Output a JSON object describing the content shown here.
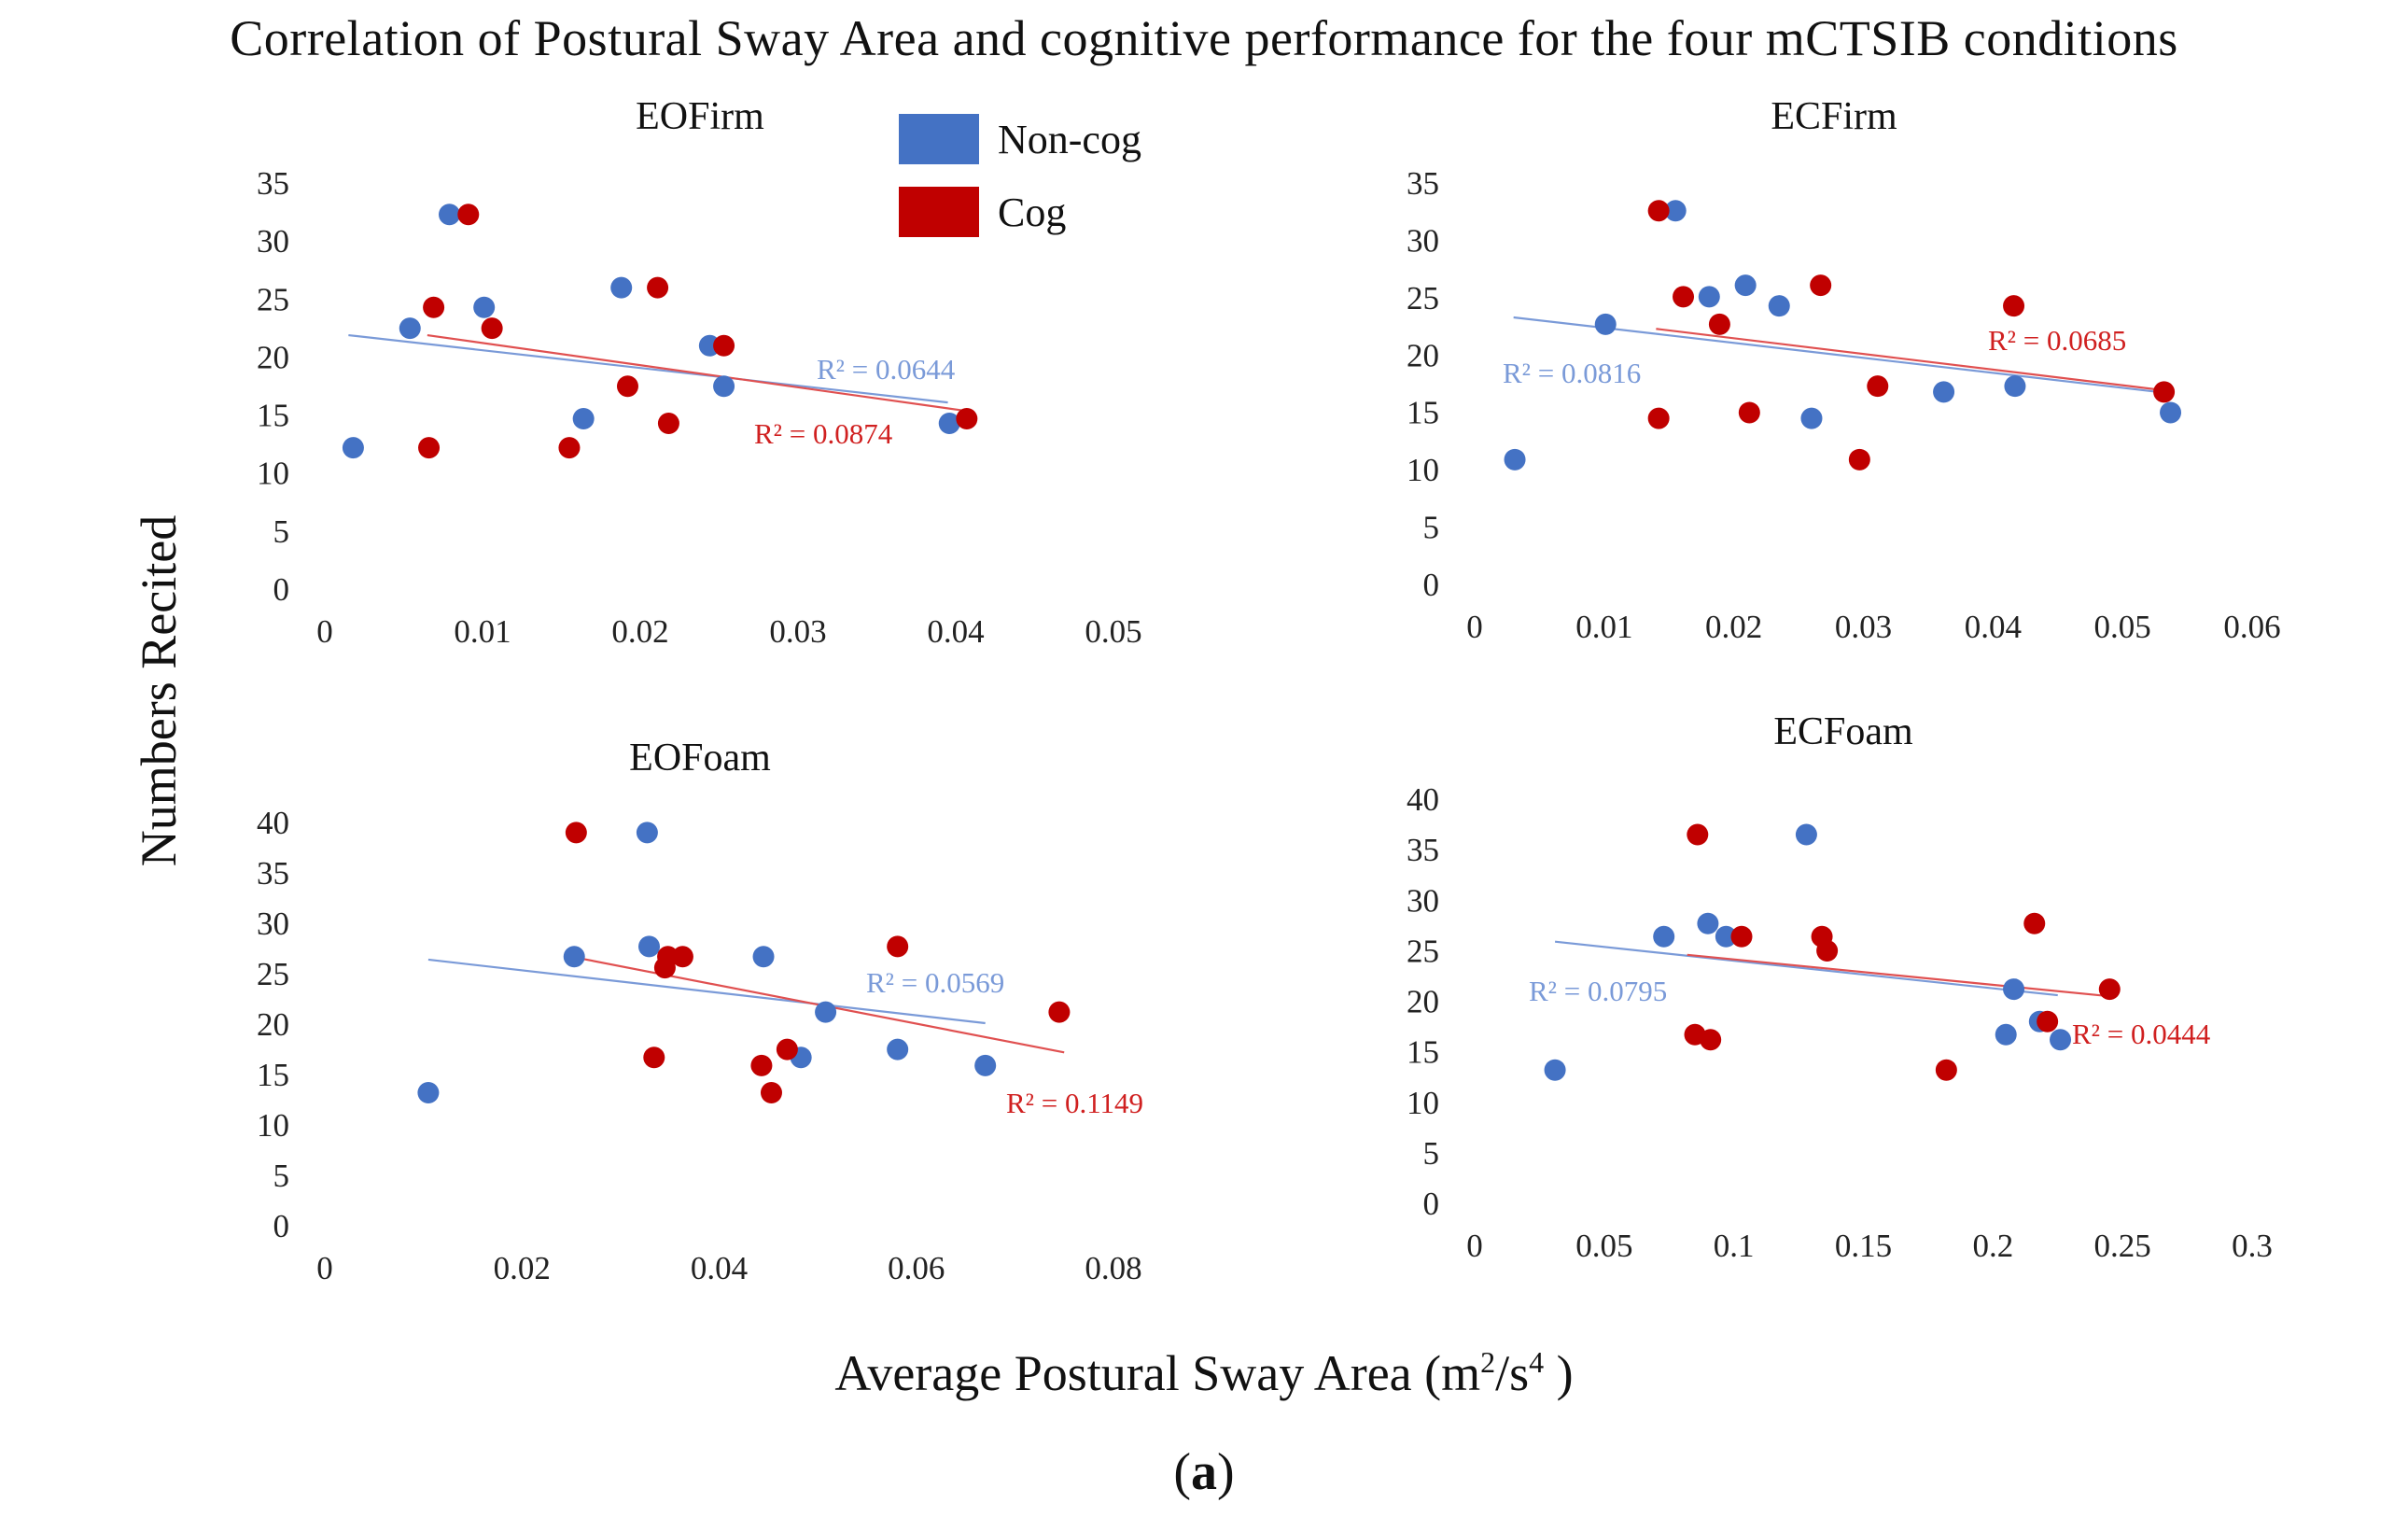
{
  "figure": {
    "title": "Correlation of Postural Sway Area and cognitive performance for the four mCTSIB conditions",
    "ylabel": "Numbers Recited",
    "xlabel_main": "Average Postural Sway Area (m",
    "xlabel_sup1": "2",
    "xlabel_mid": "/s",
    "xlabel_sup2": "4",
    "xlabel_end": " )",
    "sub_label_open": "(",
    "sub_label_bold": "a",
    "sub_label_close": ")"
  },
  "legend": {
    "items": [
      {
        "label": "Non-cog",
        "color": "#4472c4"
      },
      {
        "label": "Cog",
        "color": "#c00000"
      }
    ]
  },
  "colors": {
    "noncog": "#4472c4",
    "cog": "#c00000",
    "noncog_line": "#7a9ad8",
    "cog_line": "#e05050"
  },
  "chart_data": [
    {
      "type": "scatter",
      "title": "EOFirm",
      "xlim": [
        0,
        0.05
      ],
      "ylim": [
        0,
        35
      ],
      "xticks": [
        0,
        0.01,
        0.02,
        0.03,
        0.04,
        0.05
      ],
      "xtick_labels": [
        "0",
        "0.01",
        "0.02",
        "0.03",
        "0.04",
        "0.05"
      ],
      "yticks": [
        0,
        5,
        10,
        15,
        20,
        25,
        30,
        35
      ],
      "series": [
        {
          "name": "Non-cog",
          "r2_label": "R² = 0.0644",
          "trend": [
            [
              0.0015,
              21.8
            ],
            [
              0.0395,
              16.0
            ]
          ],
          "points": [
            [
              0.0018,
              12.1
            ],
            [
              0.0054,
              22.4
            ],
            [
              0.0079,
              32.2
            ],
            [
              0.0101,
              24.2
            ],
            [
              0.0164,
              14.6
            ],
            [
              0.0188,
              25.9
            ],
            [
              0.0244,
              20.9
            ],
            [
              0.0253,
              17.4
            ],
            [
              0.0396,
              14.2
            ]
          ]
        },
        {
          "name": "Cog",
          "r2_label": "R² = 0.0874",
          "trend": [
            [
              0.0065,
              21.8
            ],
            [
              0.0405,
              15.3
            ]
          ],
          "points": [
            [
              0.0066,
              12.1
            ],
            [
              0.0069,
              24.2
            ],
            [
              0.0091,
              32.2
            ],
            [
              0.0106,
              22.4
            ],
            [
              0.0155,
              12.1
            ],
            [
              0.0192,
              17.4
            ],
            [
              0.0211,
              25.9
            ],
            [
              0.0218,
              14.2
            ],
            [
              0.0253,
              20.9
            ],
            [
              0.0407,
              14.6
            ]
          ]
        }
      ]
    },
    {
      "type": "scatter",
      "title": "ECFirm",
      "xlim": [
        0,
        0.06
      ],
      "ylim": [
        0,
        35
      ],
      "xticks": [
        0,
        0.01,
        0.02,
        0.03,
        0.04,
        0.05,
        0.06
      ],
      "xtick_labels": [
        "0",
        "0.01",
        "0.02",
        "0.03",
        "0.04",
        "0.05",
        "0.06"
      ],
      "yticks": [
        0,
        5,
        10,
        15,
        20,
        25,
        30,
        35
      ],
      "series": [
        {
          "name": "Non-cog",
          "r2_label": "R² = 0.0816",
          "trend": [
            [
              0.003,
              23.2
            ],
            [
              0.0535,
              16.6
            ]
          ],
          "points": [
            [
              0.0031,
              10.8
            ],
            [
              0.0101,
              22.6
            ],
            [
              0.0155,
              32.5
            ],
            [
              0.0181,
              25.0
            ],
            [
              0.0209,
              26.0
            ],
            [
              0.0235,
              24.2
            ],
            [
              0.026,
              14.4
            ],
            [
              0.0362,
              16.7
            ],
            [
              0.0417,
              17.2
            ],
            [
              0.0537,
              14.9
            ]
          ]
        },
        {
          "name": "Cog",
          "r2_label": "R² = 0.0685",
          "trend": [
            [
              0.014,
              22.2
            ],
            [
              0.0535,
              16.8
            ]
          ],
          "points": [
            [
              0.0142,
              32.5
            ],
            [
              0.0142,
              14.4
            ],
            [
              0.0161,
              25.0
            ],
            [
              0.0189,
              22.6
            ],
            [
              0.0212,
              14.9
            ],
            [
              0.0267,
              26.0
            ],
            [
              0.0297,
              10.8
            ],
            [
              0.0311,
              17.2
            ],
            [
              0.0416,
              24.2
            ],
            [
              0.0532,
              16.7
            ]
          ]
        }
      ]
    },
    {
      "type": "scatter",
      "title": "EOFoam",
      "xlim": [
        0,
        0.08
      ],
      "ylim": [
        0,
        40
      ],
      "xticks": [
        0,
        0.02,
        0.04,
        0.06,
        0.08
      ],
      "xtick_labels": [
        "0",
        "0.02",
        "0.04",
        "0.06",
        "0.08"
      ],
      "yticks": [
        0,
        5,
        10,
        15,
        20,
        25,
        30,
        35,
        40
      ],
      "series": [
        {
          "name": "Non-cog",
          "r2_label": "R² = 0.0569",
          "trend": [
            [
              0.0105,
              26.3
            ],
            [
              0.067,
              20.0
            ]
          ],
          "points": [
            [
              0.0105,
              13.1
            ],
            [
              0.0253,
              26.6
            ],
            [
              0.0327,
              38.9
            ],
            [
              0.0329,
              27.6
            ],
            [
              0.0445,
              26.6
            ],
            [
              0.0483,
              16.6
            ],
            [
              0.0508,
              21.1
            ],
            [
              0.0581,
              17.4
            ],
            [
              0.067,
              15.8
            ]
          ]
        },
        {
          "name": "Cog",
          "r2_label": "R² = 0.1149",
          "trend": [
            [
              0.0255,
              26.5
            ],
            [
              0.075,
              17.1
            ]
          ],
          "points": [
            [
              0.0255,
              38.9
            ],
            [
              0.0334,
              16.6
            ],
            [
              0.0345,
              25.5
            ],
            [
              0.0348,
              26.6
            ],
            [
              0.0363,
              26.6
            ],
            [
              0.0443,
              15.8
            ],
            [
              0.0453,
              13.1
            ],
            [
              0.0469,
              17.4
            ],
            [
              0.0581,
              27.6
            ],
            [
              0.0745,
              21.1
            ]
          ]
        }
      ]
    },
    {
      "type": "scatter",
      "title": "ECFoam",
      "xlim": [
        0,
        0.3
      ],
      "ylim": [
        0,
        40
      ],
      "xticks": [
        0,
        0.05,
        0.1,
        0.15,
        0.2,
        0.25,
        0.3
      ],
      "xtick_labels": [
        "0",
        "0.05",
        "0.1",
        "0.15",
        "0.2",
        "0.25",
        "0.3"
      ],
      "yticks": [
        0,
        5,
        10,
        15,
        20,
        25,
        30,
        35,
        40
      ],
      "series": [
        {
          "name": "Non-cog",
          "r2_label": "R² = 0.0795",
          "trend": [
            [
              0.031,
              25.8
            ],
            [
              0.225,
              20.5
            ]
          ],
          "points": [
            [
              0.031,
              13.1
            ],
            [
              0.073,
              26.3
            ],
            [
              0.09,
              27.6
            ],
            [
              0.097,
              26.3
            ],
            [
              0.128,
              36.4
            ],
            [
              0.205,
              16.6
            ],
            [
              0.208,
              21.1
            ],
            [
              0.218,
              17.9
            ],
            [
              0.226,
              16.1
            ]
          ]
        },
        {
          "name": "Cog",
          "r2_label": "R² = 0.0444",
          "trend": [
            [
              0.082,
              24.5
            ],
            [
              0.245,
              20.4
            ]
          ],
          "points": [
            [
              0.085,
              16.6
            ],
            [
              0.086,
              36.4
            ],
            [
              0.091,
              16.1
            ],
            [
              0.103,
              26.3
            ],
            [
              0.134,
              26.3
            ],
            [
              0.136,
              24.9
            ],
            [
              0.182,
              13.1
            ],
            [
              0.216,
              27.6
            ],
            [
              0.221,
              17.9
            ],
            [
              0.245,
              21.1
            ]
          ]
        }
      ]
    }
  ]
}
